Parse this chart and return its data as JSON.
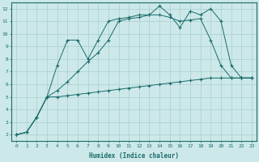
{
  "xlabel": "Humidex (Indice chaleur)",
  "ylabel": "",
  "bg_color": "#cce8e8",
  "line_color": "#1a6b6b",
  "xlim": [
    -0.5,
    23.5
  ],
  "ylim": [
    1.5,
    12.5
  ],
  "xticks": [
    0,
    1,
    2,
    3,
    4,
    5,
    6,
    7,
    8,
    9,
    10,
    11,
    12,
    13,
    14,
    15,
    16,
    17,
    18,
    19,
    20,
    21,
    22,
    23
  ],
  "yticks": [
    2,
    3,
    4,
    5,
    6,
    7,
    8,
    9,
    10,
    11,
    12
  ],
  "series1_x": [
    0,
    1,
    2,
    3,
    4,
    5,
    6,
    7,
    8,
    9,
    10,
    11,
    12,
    13,
    14,
    15,
    16,
    17,
    18,
    19,
    20,
    21,
    22,
    23
  ],
  "series1_y": [
    2.0,
    2.2,
    3.4,
    5.0,
    5.0,
    5.1,
    5.2,
    5.3,
    5.4,
    5.5,
    5.6,
    5.7,
    5.8,
    5.9,
    6.0,
    6.1,
    6.2,
    6.3,
    6.4,
    6.5,
    6.5,
    6.5,
    6.5,
    6.5
  ],
  "series2_x": [
    0,
    1,
    2,
    3,
    4,
    5,
    6,
    7,
    8,
    9,
    10,
    11,
    12,
    13,
    14,
    15,
    16,
    17,
    18,
    19,
    20,
    21,
    22,
    23
  ],
  "series2_y": [
    2.0,
    2.2,
    3.4,
    5.0,
    5.5,
    6.2,
    7.0,
    7.8,
    8.5,
    9.5,
    11.0,
    11.2,
    11.3,
    11.5,
    11.5,
    11.3,
    11.0,
    11.1,
    11.2,
    9.5,
    7.5,
    6.5,
    6.5,
    6.5
  ],
  "series3_x": [
    0,
    1,
    2,
    3,
    4,
    5,
    6,
    7,
    8,
    9,
    10,
    11,
    12,
    13,
    14,
    15,
    16,
    17,
    18,
    19,
    20,
    21,
    22,
    23
  ],
  "series3_y": [
    2.0,
    2.2,
    3.4,
    5.0,
    7.5,
    9.5,
    9.5,
    8.0,
    9.5,
    11.0,
    11.2,
    11.3,
    11.5,
    11.5,
    12.2,
    11.5,
    10.5,
    11.8,
    11.5,
    12.0,
    11.0,
    7.5,
    6.5,
    6.5
  ]
}
